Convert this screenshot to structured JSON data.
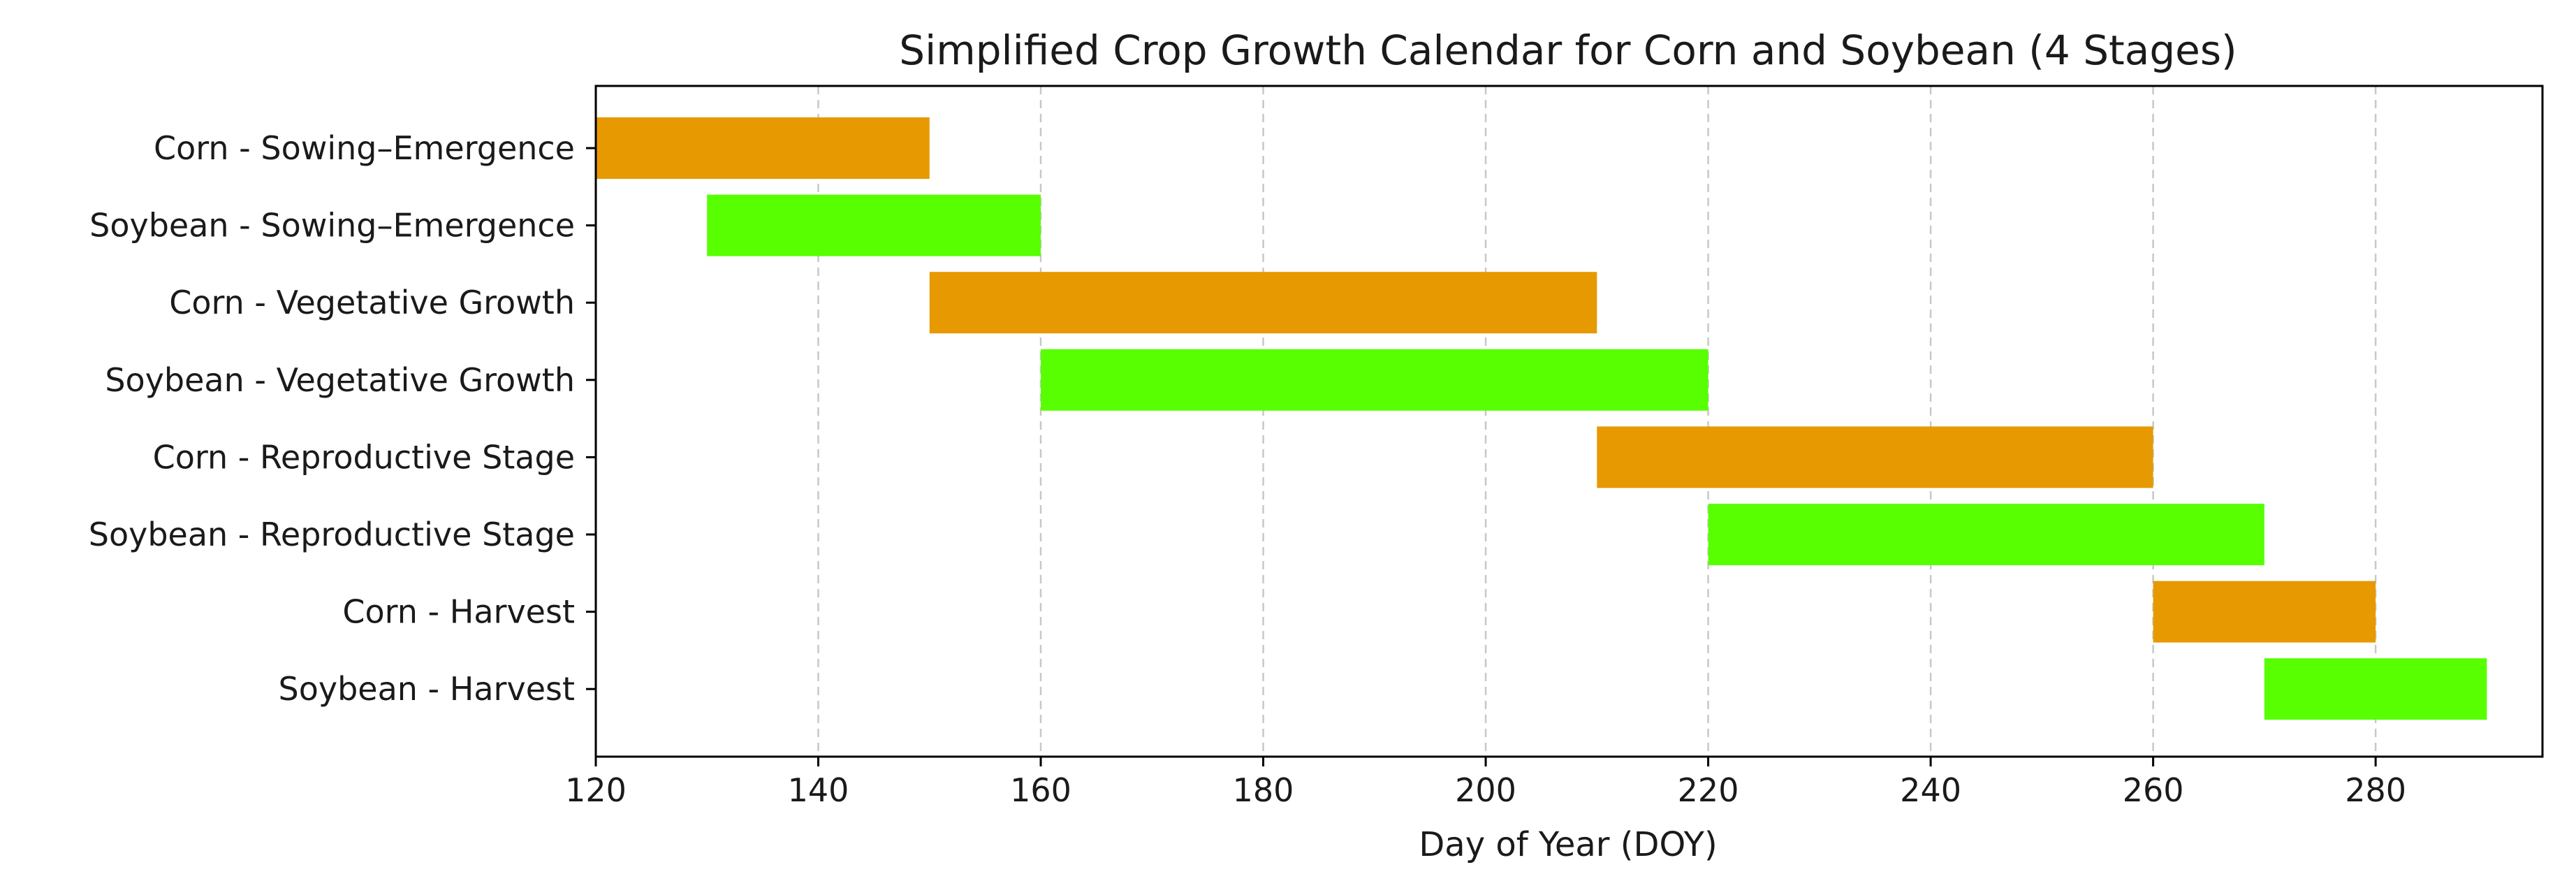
{
  "chart_data": {
    "type": "bar",
    "orientation": "horizontal",
    "title": "Simplified Crop Growth Calendar for Corn and Soybean (4 Stages)",
    "xlabel": "Day of Year (DOY)",
    "ylabel": "",
    "xlim": [
      120,
      295
    ],
    "xticks": [
      120,
      140,
      160,
      180,
      200,
      220,
      240,
      260,
      280
    ],
    "grid": "x-dashed",
    "colors": {
      "Corn": "#e69900",
      "Soybean": "#57ff00"
    },
    "bars": [
      {
        "label": "Corn - Sowing–Emergence",
        "crop": "Corn",
        "start": 120,
        "end": 150
      },
      {
        "label": "Soybean - Sowing–Emergence",
        "crop": "Soybean",
        "start": 130,
        "end": 160
      },
      {
        "label": "Corn - Vegetative Growth",
        "crop": "Corn",
        "start": 150,
        "end": 210
      },
      {
        "label": "Soybean - Vegetative Growth",
        "crop": "Soybean",
        "start": 160,
        "end": 220
      },
      {
        "label": "Corn - Reproductive Stage",
        "crop": "Corn",
        "start": 210,
        "end": 260
      },
      {
        "label": "Soybean - Reproductive Stage",
        "crop": "Soybean",
        "start": 220,
        "end": 270
      },
      {
        "label": "Corn - Harvest",
        "crop": "Corn",
        "start": 260,
        "end": 280
      },
      {
        "label": "Soybean - Harvest",
        "crop": "Soybean",
        "start": 270,
        "end": 290
      }
    ]
  }
}
